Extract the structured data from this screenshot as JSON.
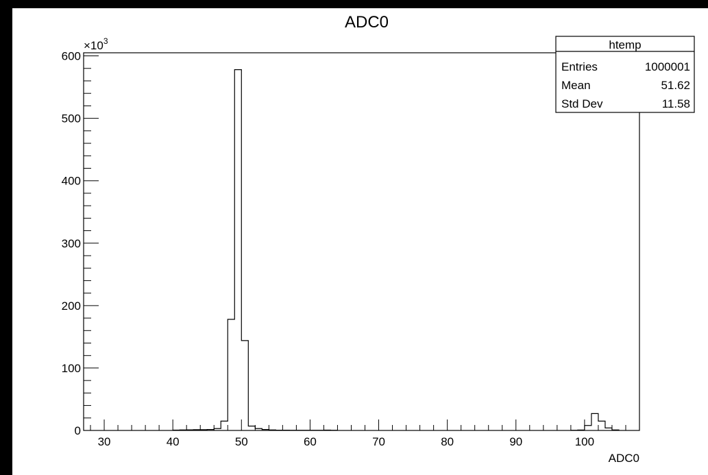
{
  "chart_data": {
    "type": "histogram",
    "title": "ADC0",
    "xlabel": "ADC0",
    "ylabel": "",
    "xlim": [
      27,
      108
    ],
    "ylim": [
      0,
      605000
    ],
    "y_exponent_label": "×10",
    "y_exponent_power": "3",
    "x_ticks": [
      30,
      40,
      50,
      60,
      70,
      80,
      90,
      100
    ],
    "x_tick_labels": [
      "30",
      "40",
      "50",
      "60",
      "70",
      "80",
      "90",
      "100"
    ],
    "y_ticks": [
      0,
      100000,
      200000,
      300000,
      400000,
      500000,
      600000
    ],
    "y_tick_labels": [
      "0",
      "100",
      "200",
      "300",
      "400",
      "500",
      "600"
    ],
    "bin_width": 1,
    "bins": [
      {
        "x": 40,
        "count": 600
      },
      {
        "x": 41,
        "count": 800
      },
      {
        "x": 42,
        "count": 1000
      },
      {
        "x": 43,
        "count": 1200
      },
      {
        "x": 44,
        "count": 1200
      },
      {
        "x": 45,
        "count": 1500
      },
      {
        "x": 46,
        "count": 3000
      },
      {
        "x": 47,
        "count": 15000
      },
      {
        "x": 48,
        "count": 178000
      },
      {
        "x": 49,
        "count": 578000
      },
      {
        "x": 50,
        "count": 144000
      },
      {
        "x": 51,
        "count": 7000
      },
      {
        "x": 52,
        "count": 3000
      },
      {
        "x": 53,
        "count": 1500
      },
      {
        "x": 54,
        "count": 800
      },
      {
        "x": 55,
        "count": 500
      },
      {
        "x": 56,
        "count": 400
      },
      {
        "x": 57,
        "count": 300
      },
      {
        "x": 58,
        "count": 300
      },
      {
        "x": 59,
        "count": 300
      },
      {
        "x": 60,
        "count": 300
      },
      {
        "x": 61,
        "count": 300
      },
      {
        "x": 62,
        "count": 600
      },
      {
        "x": 63,
        "count": 300
      },
      {
        "x": 98,
        "count": 300
      },
      {
        "x": 99,
        "count": 700
      },
      {
        "x": 100,
        "count": 8000
      },
      {
        "x": 101,
        "count": 27000
      },
      {
        "x": 102,
        "count": 15000
      },
      {
        "x": 103,
        "count": 4000
      },
      {
        "x": 104,
        "count": 800
      }
    ],
    "stats_box": {
      "name": "htemp",
      "rows": [
        {
          "label": "Entries",
          "value": "1000001"
        },
        {
          "label": "Mean",
          "value": "51.62"
        },
        {
          "label": "Std Dev",
          "value": "11.58"
        }
      ],
      "placement": "top-right"
    },
    "line_color": "#000000",
    "grid": false
  }
}
